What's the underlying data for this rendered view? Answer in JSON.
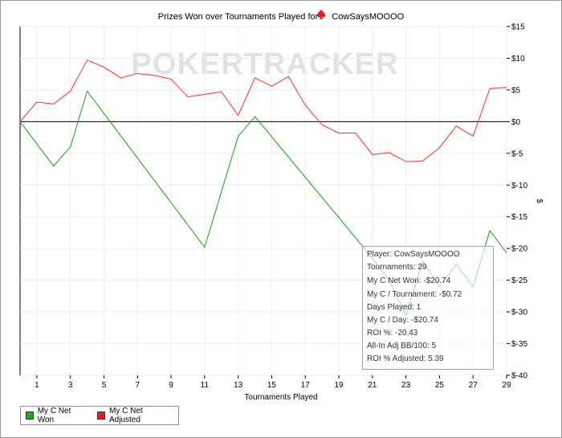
{
  "chart_data": {
    "type": "line",
    "title_prefix": "Prizes Won over Tournaments Played for",
    "player": "CowSaysMOOOO",
    "xlabel": "Tournaments Played",
    "ylabel": "$",
    "xlim": [
      0,
      29
    ],
    "ylim": [
      -40,
      15
    ],
    "x_ticks": [
      1,
      3,
      5,
      7,
      9,
      11,
      13,
      15,
      17,
      19,
      21,
      23,
      25,
      27,
      29
    ],
    "y_ticks": [
      15,
      10,
      5,
      0,
      -5,
      -10,
      -15,
      -20,
      -25,
      -30,
      -35,
      -40
    ],
    "y_tick_labels": [
      "$15",
      "$10",
      "$5",
      "$0",
      "$-5",
      "$-10",
      "$-15",
      "$-20",
      "$-25",
      "$-30",
      "$-35",
      "$-40"
    ],
    "watermark": "POKERTRACKER",
    "series": [
      {
        "name": "My C Net Won",
        "color": "#22aa22",
        "points": [
          [
            0,
            0
          ],
          [
            2,
            -7
          ],
          [
            3,
            -4
          ],
          [
            4,
            4.8
          ],
          [
            11,
            -19.8
          ],
          [
            13,
            -2.3
          ],
          [
            14,
            0.8
          ],
          [
            21,
            -21.5
          ],
          [
            22,
            -25
          ],
          [
            23,
            -30.5
          ],
          [
            24,
            -22
          ],
          [
            25,
            -26
          ],
          [
            26,
            -22.5
          ],
          [
            27,
            -26
          ],
          [
            28,
            -17.2
          ],
          [
            29,
            -20.7
          ]
        ]
      },
      {
        "name": "My C Net Adjusted",
        "color": "#ff3b3b",
        "points": [
          [
            0,
            0
          ],
          [
            1,
            3.1
          ],
          [
            2,
            2.8
          ],
          [
            3,
            4.8
          ],
          [
            4,
            9.7
          ],
          [
            5,
            8.6
          ],
          [
            6,
            6.9
          ],
          [
            7,
            7.6
          ],
          [
            8,
            7.3
          ],
          [
            9,
            6.7
          ],
          [
            10,
            3.9
          ],
          [
            11,
            4.3
          ],
          [
            12,
            4.7
          ],
          [
            13,
            1
          ],
          [
            14,
            6.9
          ],
          [
            15,
            5.6
          ],
          [
            16,
            7.1
          ],
          [
            17,
            2.6
          ],
          [
            18,
            -0.5
          ],
          [
            19,
            -1.8
          ],
          [
            20,
            -1.8
          ],
          [
            21,
            -5.2
          ],
          [
            22,
            -4.9
          ],
          [
            23,
            -6.3
          ],
          [
            24,
            -6.2
          ],
          [
            25,
            -4.1
          ],
          [
            26,
            -0.7
          ],
          [
            27,
            -2.3
          ],
          [
            28,
            5.2
          ],
          [
            29,
            5.4
          ]
        ]
      }
    ]
  },
  "tooltip": {
    "player": "Player: CowSaysMOOOO",
    "tournaments": "Tournaments: 29",
    "net_won": "My C Net Won: -$20.74",
    "per_tournament": "My C / Tournament: -$0.72",
    "days_played": "Days Played: 1",
    "per_day": "My C / Day: -$20.74",
    "roi": "ROI %: -20.43",
    "allin_adj": "All-In Adj BB/100: 5",
    "roi_adjusted": "ROI % Adjusted: 5.39"
  },
  "legend": {
    "items": [
      {
        "label": "My C Net Won",
        "color": "#22aa22"
      },
      {
        "label": "My C Net Adjusted",
        "color": "#dd2222"
      }
    ]
  }
}
